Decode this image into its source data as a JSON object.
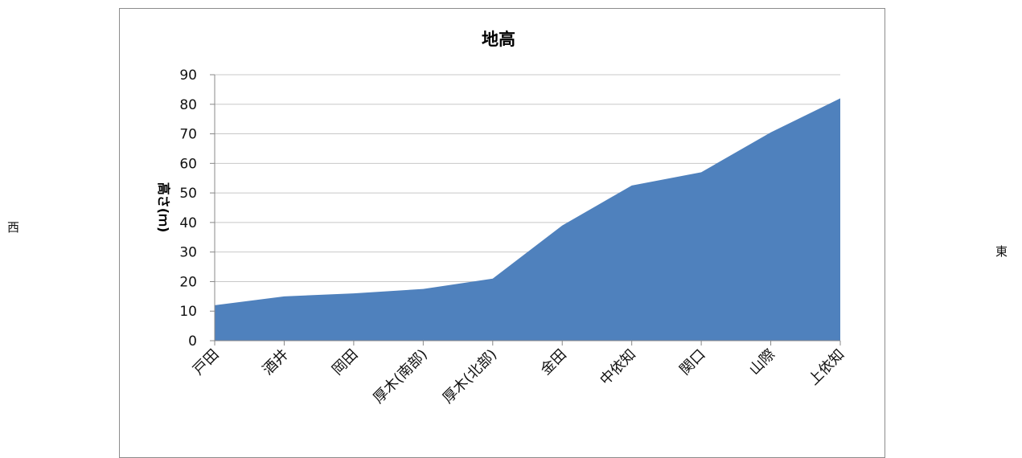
{
  "side_labels": {
    "left": "西",
    "right": "東"
  },
  "chart_data": {
    "type": "area",
    "title": "地高",
    "ylabel": "高さ(ｍ)",
    "xlabel": "",
    "categories": [
      "戸田",
      "酒井",
      "岡田",
      "厚木(南部)",
      "厚木(北部)",
      "金田",
      "中依知",
      "関口",
      "山際",
      "上依知"
    ],
    "values": [
      12,
      15,
      16,
      17.5,
      21,
      39,
      52.5,
      57,
      70.5,
      82
    ],
    "ylim": [
      0,
      90
    ],
    "yticks": [
      0,
      10,
      20,
      30,
      40,
      50,
      60,
      70,
      80,
      90
    ],
    "grid": true,
    "legend": "none",
    "color": "#4f81bd"
  }
}
